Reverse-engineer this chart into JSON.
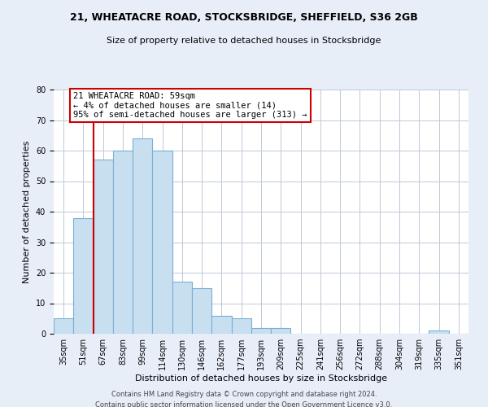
{
  "title1": "21, WHEATACRE ROAD, STOCKSBRIDGE, SHEFFIELD, S36 2GB",
  "title2": "Size of property relative to detached houses in Stocksbridge",
  "xlabel": "Distribution of detached houses by size in Stocksbridge",
  "ylabel": "Number of detached properties",
  "footer1": "Contains HM Land Registry data © Crown copyright and database right 2024.",
  "footer2": "Contains public sector information licensed under the Open Government Licence v3.0.",
  "bar_labels": [
    "35sqm",
    "51sqm",
    "67sqm",
    "83sqm",
    "99sqm",
    "114sqm",
    "130sqm",
    "146sqm",
    "162sqm",
    "177sqm",
    "193sqm",
    "209sqm",
    "225sqm",
    "241sqm",
    "256sqm",
    "272sqm",
    "288sqm",
    "304sqm",
    "319sqm",
    "335sqm",
    "351sqm"
  ],
  "bar_heights": [
    5,
    38,
    57,
    60,
    64,
    60,
    17,
    15,
    6,
    5,
    2,
    2,
    0,
    0,
    0,
    0,
    0,
    0,
    0,
    1,
    0
  ],
  "bar_color": "#c8dff0",
  "bar_edge_color": "#7bafd4",
  "vline_color": "#cc0000",
  "vline_x_index": 1.5,
  "annotation_title": "21 WHEATACRE ROAD: 59sqm",
  "annotation_line1": "← 4% of detached houses are smaller (14)",
  "annotation_line2": "95% of semi-detached houses are larger (313) →",
  "annotation_box_edgecolor": "#cc0000",
  "ylim": [
    0,
    80
  ],
  "background_color": "#e8eef8",
  "plot_background": "#ffffff",
  "grid_color": "#c0c8d8",
  "title_fontsize": 9,
  "subtitle_fontsize": 8,
  "ylabel_fontsize": 8,
  "xlabel_fontsize": 8,
  "tick_fontsize": 7,
  "footer_fontsize": 6,
  "annotation_fontsize": 7.5
}
